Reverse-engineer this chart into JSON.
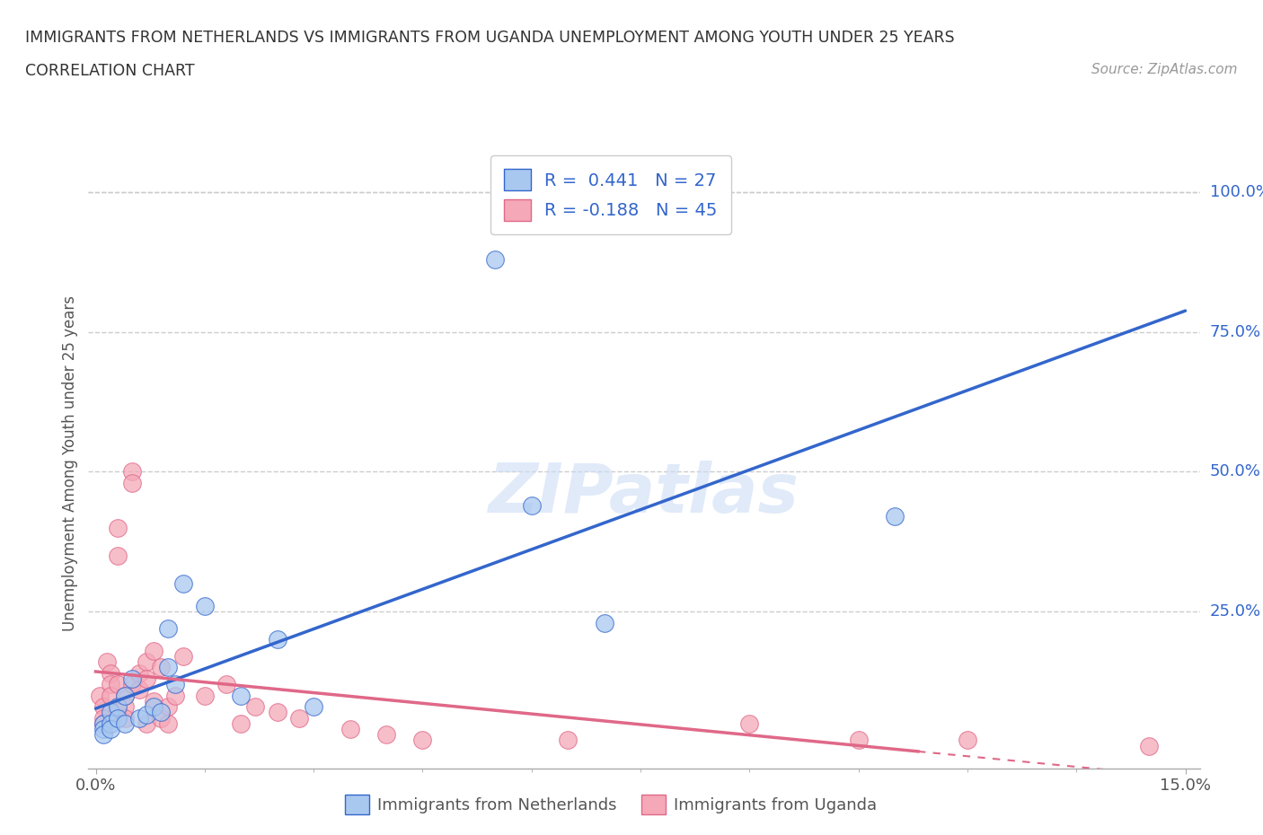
{
  "title_line1": "IMMIGRANTS FROM NETHERLANDS VS IMMIGRANTS FROM UGANDA UNEMPLOYMENT AMONG YOUTH UNDER 25 YEARS",
  "title_line2": "CORRELATION CHART",
  "source": "Source: ZipAtlas.com",
  "ylabel": "Unemployment Among Youth under 25 years",
  "r_netherlands": 0.441,
  "n_netherlands": 27,
  "r_uganda": -0.188,
  "n_uganda": 45,
  "netherlands_color": "#a8c8f0",
  "uganda_color": "#f4a8b8",
  "netherlands_line_color": "#3366cc",
  "uganda_line_color": "#e06888",
  "background_color": "#ffffff",
  "grid_color": "#cccccc",
  "xlim": [
    -0.001,
    0.152
  ],
  "ylim": [
    -0.03,
    1.06
  ],
  "netherlands_x": [
    0.001,
    0.001,
    0.001,
    0.002,
    0.002,
    0.002,
    0.003,
    0.003,
    0.004,
    0.004,
    0.005,
    0.006,
    0.007,
    0.008,
    0.009,
    0.01,
    0.01,
    0.011,
    0.012,
    0.015,
    0.02,
    0.025,
    0.03,
    0.055,
    0.06,
    0.07,
    0.11
  ],
  "netherlands_y": [
    0.05,
    0.04,
    0.03,
    0.07,
    0.05,
    0.04,
    0.08,
    0.06,
    0.1,
    0.05,
    0.13,
    0.06,
    0.065,
    0.08,
    0.07,
    0.15,
    0.22,
    0.12,
    0.3,
    0.26,
    0.1,
    0.2,
    0.08,
    0.88,
    0.44,
    0.23,
    0.42
  ],
  "uganda_x": [
    0.0005,
    0.001,
    0.001,
    0.001,
    0.0015,
    0.002,
    0.002,
    0.002,
    0.003,
    0.003,
    0.003,
    0.003,
    0.004,
    0.004,
    0.004,
    0.005,
    0.005,
    0.005,
    0.006,
    0.006,
    0.007,
    0.007,
    0.007,
    0.008,
    0.008,
    0.009,
    0.009,
    0.01,
    0.01,
    0.011,
    0.012,
    0.015,
    0.018,
    0.02,
    0.022,
    0.025,
    0.028,
    0.035,
    0.04,
    0.045,
    0.065,
    0.09,
    0.105,
    0.12,
    0.145
  ],
  "uganda_y": [
    0.1,
    0.08,
    0.06,
    0.05,
    0.16,
    0.14,
    0.12,
    0.1,
    0.4,
    0.35,
    0.12,
    0.07,
    0.1,
    0.08,
    0.06,
    0.5,
    0.48,
    0.12,
    0.14,
    0.11,
    0.16,
    0.13,
    0.05,
    0.18,
    0.09,
    0.15,
    0.06,
    0.08,
    0.05,
    0.1,
    0.17,
    0.1,
    0.12,
    0.05,
    0.08,
    0.07,
    0.06,
    0.04,
    0.03,
    0.02,
    0.02,
    0.05,
    0.02,
    0.02,
    0.01
  ]
}
